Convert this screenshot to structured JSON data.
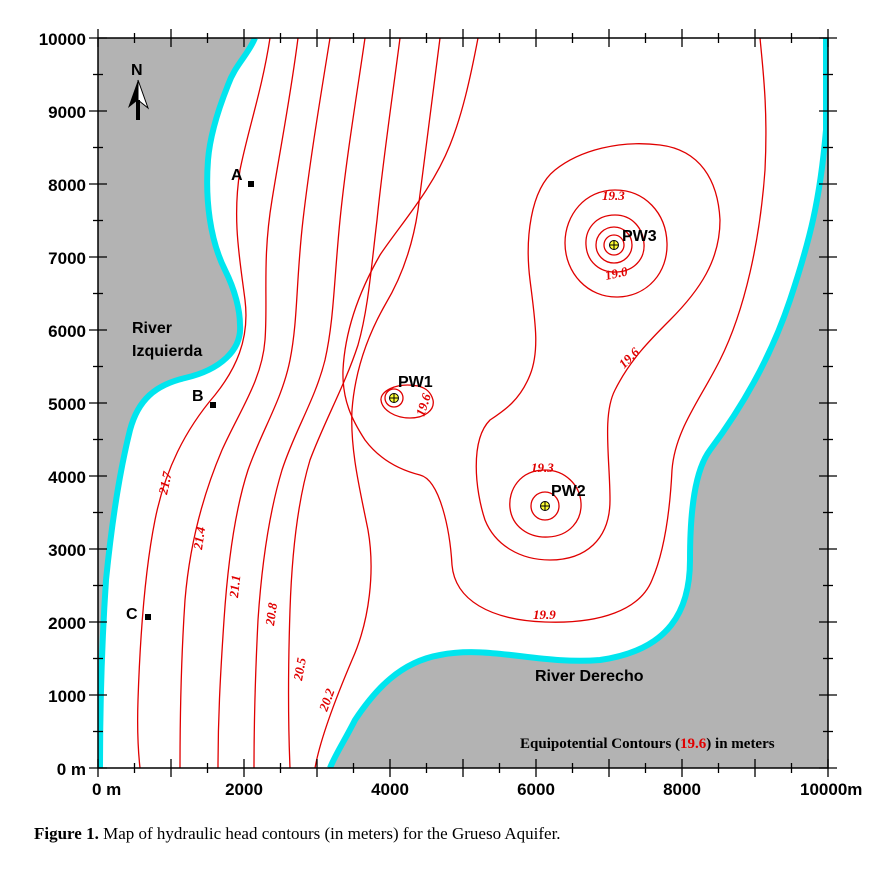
{
  "axes": {
    "y_ticks": [
      "10000",
      "9000",
      "8000",
      "7000",
      "6000",
      "5000",
      "4000",
      "3000",
      "2000",
      "1000",
      "0 m"
    ],
    "x_ticks": [
      "0 m",
      "2000",
      "4000",
      "6000",
      "8000",
      "10000m"
    ]
  },
  "north_arrow": {
    "label": "N"
  },
  "rivers": {
    "left_line1": "River",
    "left_line2": "Izquierda",
    "bottom": "River Derecho"
  },
  "points": {
    "a": "A",
    "b": "B",
    "c": "C"
  },
  "wells": {
    "pw1": "PW1",
    "pw2": "PW2",
    "pw3": "PW3"
  },
  "contour_labels": {
    "c217": "21.7",
    "c214": "21.4",
    "c211": "21.1",
    "c208": "20.8",
    "c205": "20.5",
    "c202": "20.2",
    "c199": "19.9",
    "c196_main": "19.6",
    "c196_pw1": "19.6",
    "c193_pw2": "19.3",
    "c193_pw3": "19.3",
    "c190_pw3": "19.0"
  },
  "legend": {
    "before": "Equipotential Contours (",
    "value": "19.6",
    "after": ") in meters"
  },
  "caption": {
    "label": "Figure 1.",
    "text": "  Map of hydraulic head contours (in meters) for the Grueso Aquifer."
  },
  "colors": {
    "land": "#b3b3b3",
    "river": "#00e5ee",
    "contour": "#e00000",
    "well_fill": "#ffff33"
  }
}
